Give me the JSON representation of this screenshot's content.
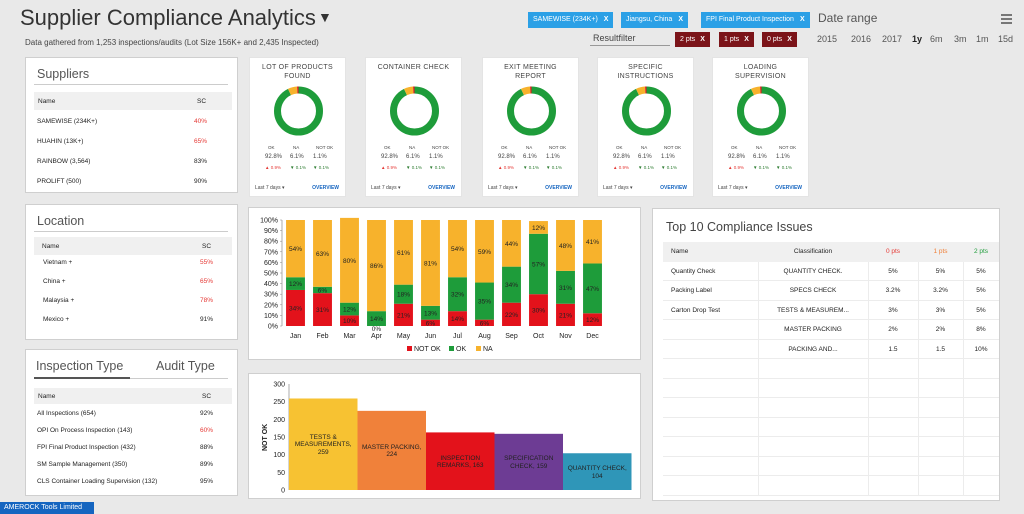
{
  "header": {
    "title": "Supplier Compliance Analytics",
    "title_arrow": "▼",
    "subtitle": "Data gathered from 1,253 inspections/audits (Lot Size 156K+ and 2,435 Inspected)",
    "filters": [
      "SAMEWISE (234K+)",
      "Jiangsu, China",
      "FPI Final Product Inspection"
    ],
    "filter_remove": "X",
    "date_range_label": "Date range",
    "result_filter_label": "Resultfilter",
    "pts_filters": [
      "2 pts",
      "1 pts",
      "0 pts"
    ],
    "ranges": [
      "2015",
      "2016",
      "2017",
      "1y",
      "6m",
      "3m",
      "1m",
      "15d"
    ],
    "selected_range": "1y"
  },
  "suppliers": {
    "title": "Suppliers",
    "col_name": "Name",
    "col_sc": "SC",
    "rows": [
      {
        "name": "SAMEWISE (234K+)",
        "sc": "40%",
        "warn": true
      },
      {
        "name": "HUAHIN (13K+)",
        "sc": "65%",
        "warn": true
      },
      {
        "name": "RAINBOW (3,564)",
        "sc": "83%",
        "warn": false
      },
      {
        "name": "PROLIFT (500)",
        "sc": "90%",
        "warn": false
      }
    ]
  },
  "location": {
    "title": "Location",
    "col_name": "Name",
    "col_sc": "SC",
    "rows": [
      {
        "name": "Vietnam +",
        "sc": "55%",
        "warn": true
      },
      {
        "name": "China +",
        "sc": "65%",
        "warn": true
      },
      {
        "name": "Malaysia +",
        "sc": "78%",
        "warn": true
      },
      {
        "name": "Mexico +",
        "sc": "91%",
        "warn": false
      }
    ]
  },
  "inspection": {
    "tab_inspection": "Inspection Type",
    "tab_audit": "Audit Type",
    "col_name": "Name",
    "col_sc": "SC",
    "rows": [
      {
        "name": "All Inspections (654)",
        "sc": "92%",
        "warn": false
      },
      {
        "name": "OPI On Process Inspection (143)",
        "sc": "60%",
        "warn": true
      },
      {
        "name": "FPI Final Product Inspection (432)",
        "sc": "88%",
        "warn": false
      },
      {
        "name": "SM Sample Management (350)",
        "sc": "89%",
        "warn": false
      },
      {
        "name": "CLS Container Loading Supervision (132)",
        "sc": "95%",
        "warn": false
      }
    ]
  },
  "kpis": [
    {
      "title": "LOT OF PRODUCTS FOUND",
      "ok_label": "OK",
      "na_label": "NA",
      "notok_label": "NOT OK",
      "ok": "92.8%",
      "na": "6.1%",
      "notok": "1.1%",
      "d1": "▲ 0.9%",
      "d2": "▼ 0.1%",
      "d3": "▼ 0.1%",
      "period": "Last 7 days ▾",
      "link": "OVERVIEW"
    },
    {
      "title": "CONTAINER CHECK",
      "ok_label": "OK",
      "na_label": "NA",
      "notok_label": "NOT OK",
      "ok": "92.8%",
      "na": "6.1%",
      "notok": "1.1%",
      "d1": "▲ 0.9%",
      "d2": "▼ 0.1%",
      "d3": "▼ 0.1%",
      "period": "Last 7 days ▾",
      "link": "OVERVIEW"
    },
    {
      "title": "EXIT MEETING REPORT",
      "ok_label": "OK",
      "na_label": "NA",
      "notok_label": "NOT OK",
      "ok": "92.8%",
      "na": "6.1%",
      "notok": "1.1%",
      "d1": "▲ 0.9%",
      "d2": "▼ 0.1%",
      "d3": "▼ 0.1%",
      "period": "Last 7 days ▾",
      "link": "OVERVIEW"
    },
    {
      "title": "SPECIFIC INSTRUCTIONS",
      "ok_label": "OK",
      "na_label": "NA",
      "notok_label": "NOT OK",
      "ok": "92.8%",
      "na": "6.1%",
      "notok": "1.1%",
      "d1": "▲ 0.9%",
      "d2": "▼ 0.1%",
      "d3": "▼ 0.1%",
      "period": "Last 7 days ▾",
      "link": "OVERVIEW"
    },
    {
      "title": "LOADING SUPERVISION",
      "ok_label": "OK",
      "na_label": "NA",
      "notok_label": "NOT OK",
      "ok": "92.8%",
      "na": "6.1%",
      "notok": "1.1%",
      "d1": "▲ 0.9%",
      "d2": "▼ 0.1%",
      "d3": "▼ 0.1%",
      "period": "Last 7 days ▾",
      "link": "OVERVIEW"
    }
  ],
  "colors": {
    "ok": "#1e9c3a",
    "na": "#f7b22c",
    "notok": "#e3121b",
    "accent": "#2ba0e6",
    "chip_dark": "#7b1419"
  },
  "top10": {
    "title": "Top 10 Compliance Issues",
    "headers": [
      "Name",
      "Classification",
      "0 pts",
      "1 pts",
      "2 pts"
    ],
    "rows": [
      [
        "Quantity Check",
        "QUANTITY CHECK.",
        "5%",
        "5%",
        "5%"
      ],
      [
        "Packing Label",
        "SPECS CHECK",
        "3.2%",
        "3.2%",
        "5%"
      ],
      [
        "Carton Drop Test",
        "TESTS & MEASUREM...",
        "3%",
        "3%",
        "5%"
      ],
      [
        "",
        "MASTER PACKING",
        "2%",
        "2%",
        "8%"
      ],
      [
        "",
        "PACKING AND...",
        "1.5",
        "1.5",
        "10%"
      ]
    ]
  },
  "chart_data": [
    {
      "type": "bar",
      "stacked": true,
      "categories": [
        "Jan",
        "Feb",
        "Mar",
        "Apr",
        "May",
        "Jun",
        "Jul",
        "Aug",
        "Sep",
        "Oct",
        "Nov",
        "Dec"
      ],
      "series": [
        {
          "name": "NOT OK",
          "values": [
            34,
            31,
            10,
            0,
            21,
            6,
            14,
            6,
            22,
            30,
            21,
            12
          ],
          "labels": [
            "34%",
            "31%",
            "10%",
            "0%",
            "21%",
            "6%",
            "14%",
            "6%",
            "22%",
            "30%",
            "21%",
            "12%"
          ]
        },
        {
          "name": "OK",
          "values": [
            12,
            6,
            12,
            14,
            18,
            13,
            32,
            35,
            34,
            57,
            31,
            47
          ],
          "labels": [
            "12%",
            "6%",
            "12%",
            "14%",
            "18%",
            "13%",
            "32%",
            "35%",
            "34%",
            "57%",
            "31%",
            "47%"
          ]
        },
        {
          "name": "NA",
          "values": [
            54,
            63,
            80,
            86,
            61,
            81,
            54,
            59,
            44,
            12,
            48,
            41
          ],
          "labels": [
            "54%",
            "63%",
            "80%",
            "86%",
            "61%",
            "81%",
            "54%",
            "59%",
            "44%",
            "12%",
            "48%",
            "41%"
          ]
        }
      ],
      "yticks": [
        "0%",
        "10%",
        "20%",
        "30%",
        "40%",
        "50%",
        "60%",
        "70%",
        "80%",
        "90%",
        "100%"
      ],
      "ylim": [
        0,
        100
      ],
      "legend": "bottom"
    },
    {
      "type": "bar",
      "ylabel": "NOT OK",
      "ylim": [
        0,
        300
      ],
      "yticks": [
        "0",
        "50",
        "100",
        "150",
        "200",
        "250",
        "300"
      ],
      "bars": [
        {
          "label": "TESTS & MEASUREMENTS, 259",
          "value": 259,
          "color": "#f7c232"
        },
        {
          "label": "MASTER PACKING, 224",
          "value": 224,
          "color": "#f0813a"
        },
        {
          "label": "INSPECTION REMARKS, 163",
          "value": 163,
          "color": "#e3121b"
        },
        {
          "label": "SPECIFICATION CHECK, 159",
          "value": 159,
          "color": "#6d3c94"
        },
        {
          "label": "QUANTITY CHECK, 104",
          "value": 104,
          "color": "#2f96b8"
        }
      ]
    }
  ],
  "footer": {
    "label": "AMEROCK Tools Limited"
  }
}
